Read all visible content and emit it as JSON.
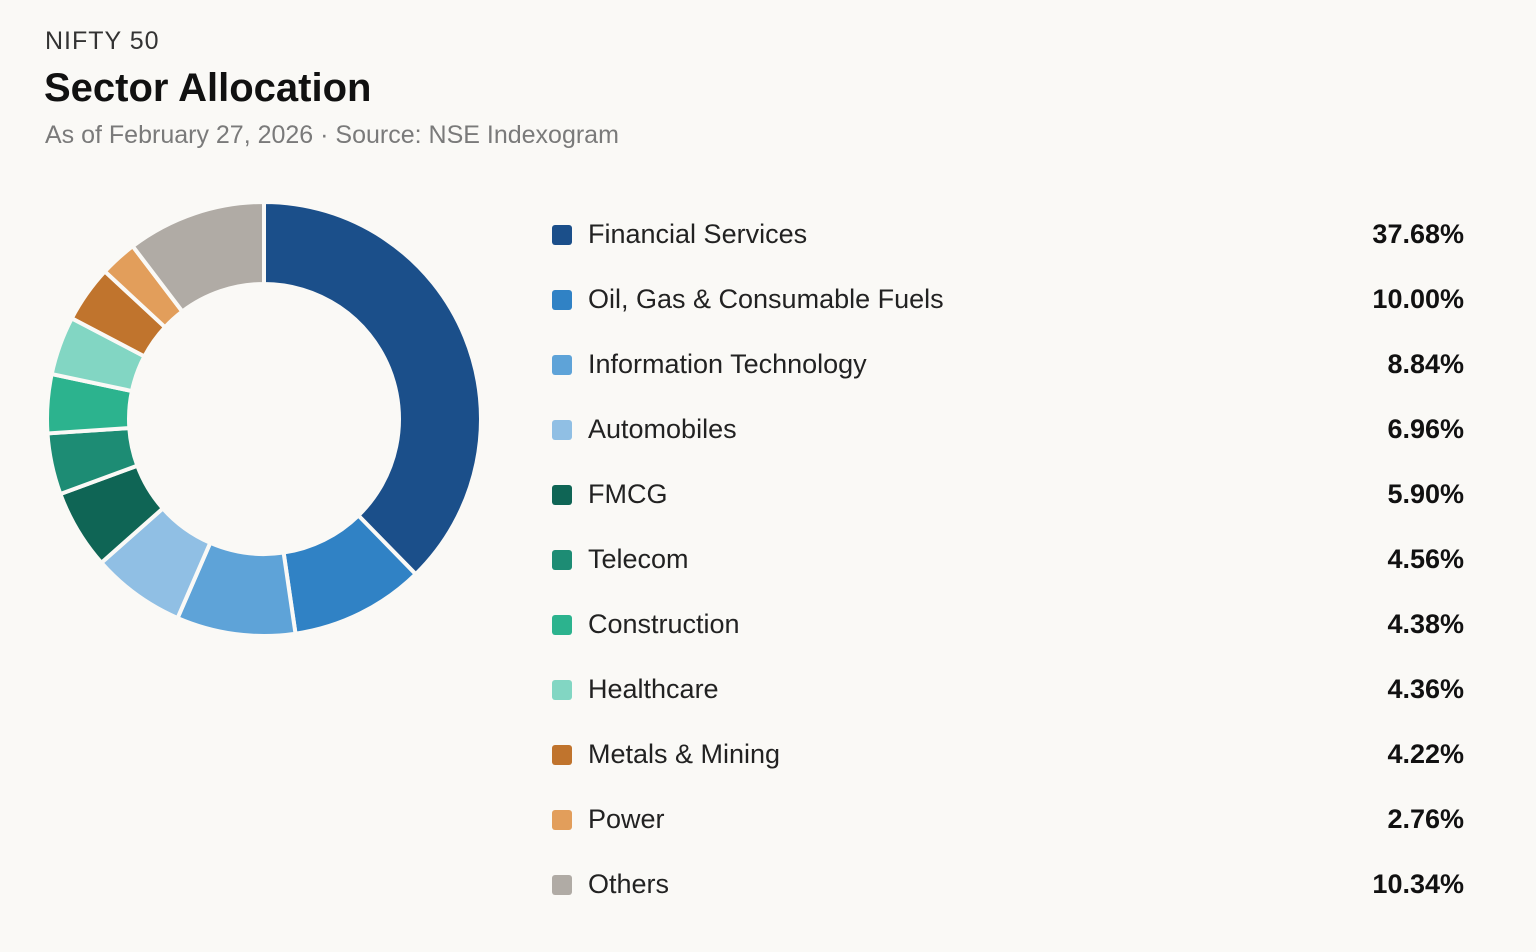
{
  "header": {
    "eyebrow": "NIFTY 50",
    "title": "Sector Allocation",
    "subtitle": "As of February 27, 2026 · Source: NSE Indexogram"
  },
  "chart_data": {
    "type": "pie",
    "style": "donut",
    "legend_placement": "right",
    "categories": [
      "Financial Services",
      "Oil, Gas & Consumable Fuels",
      "Information Technology",
      "Automobiles",
      "FMCG",
      "Telecom",
      "Construction",
      "Healthcare",
      "Metals & Mining",
      "Power",
      "Others"
    ],
    "values": [
      37.68,
      10.0,
      8.84,
      6.96,
      5.9,
      4.56,
      4.38,
      4.36,
      4.22,
      2.76,
      10.34
    ],
    "value_labels": [
      "37.68%",
      "10.00%",
      "8.84%",
      "6.96%",
      "5.90%",
      "4.56%",
      "4.38%",
      "4.36%",
      "4.22%",
      "2.76%",
      "10.34%"
    ],
    "colors": [
      "#1b4f8a",
      "#3082c5",
      "#5ea3d8",
      "#90bfe4",
      "#0f6555",
      "#1d8c74",
      "#2cb38e",
      "#82d6c3",
      "#c0742d",
      "#e29e5b",
      "#b0aba5"
    ]
  }
}
